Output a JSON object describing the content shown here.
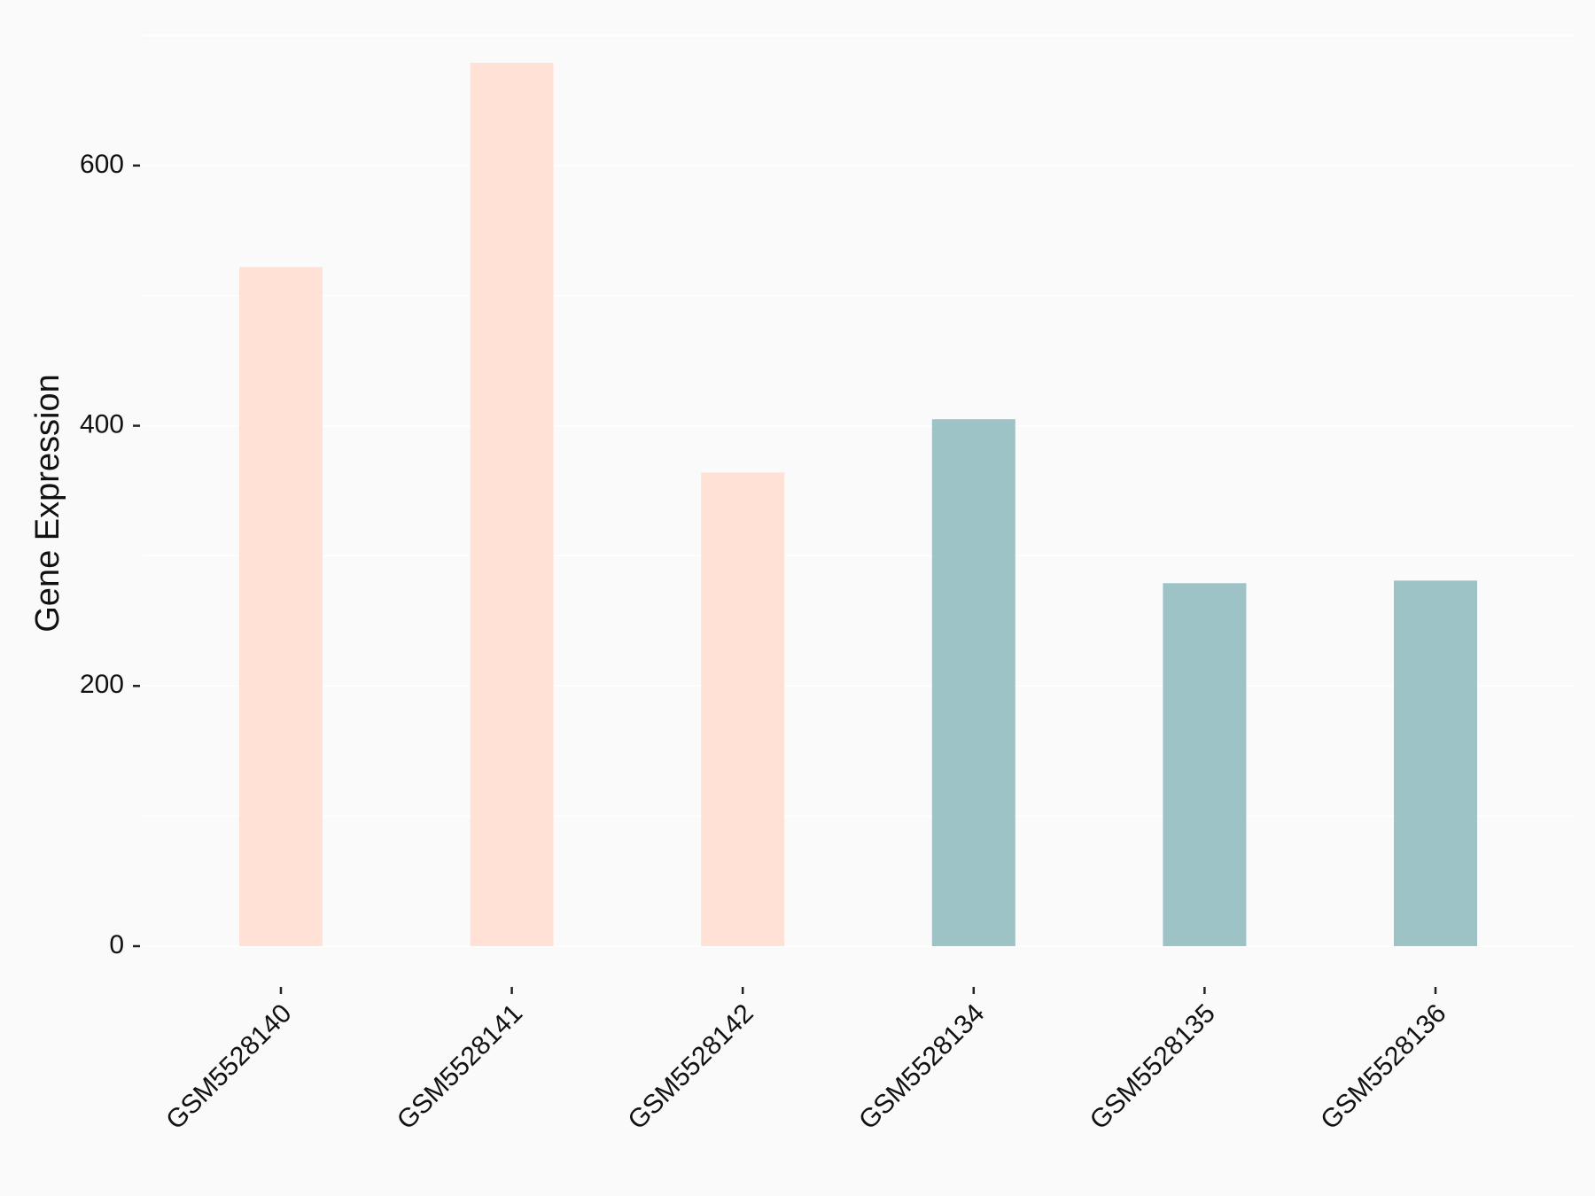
{
  "chart_data": {
    "type": "bar",
    "y_label": "Gene Expression",
    "categories": [
      "GSM5528140",
      "GSM5528141",
      "GSM5528142",
      "GSM5528134",
      "GSM5528135",
      "GSM5528136"
    ],
    "values": [
      522,
      679,
      364,
      405,
      279,
      281
    ],
    "colors": [
      "#ffe1d6",
      "#ffe1d6",
      "#ffe1d6",
      "#9dc3c7",
      "#9dc3c7",
      "#9dc3c7"
    ],
    "ylim": [
      -30,
      700
    ],
    "yticks": [
      0,
      200,
      400,
      600
    ],
    "grid": true,
    "grid_lines": [
      100,
      300,
      500,
      700
    ],
    "background": "#fafafa"
  }
}
